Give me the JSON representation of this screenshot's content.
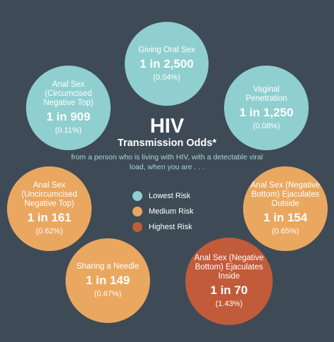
{
  "title": "HIV",
  "subtitle": "Transmission Odds*",
  "description": "from a person who is living with HIV, with a detectable viral load, when you are . . .",
  "colors": {
    "background": "#3e4b57",
    "low": "#8fcfcf",
    "medium": "#eaa760",
    "high": "#c25b3a"
  },
  "legend": [
    {
      "label": "Lowest Risk",
      "level": "low"
    },
    {
      "label": "Medium Risk",
      "level": "medium"
    },
    {
      "label": "Highest Risk",
      "level": "high"
    }
  ],
  "activities": [
    {
      "label": "Giving Oral Sex",
      "odds": "1 in 2,500",
      "percent": "(0.04%)",
      "level": "low"
    },
    {
      "label": "Vaginal Penetration",
      "odds": "1 in 1,250",
      "percent": "(0.08%)",
      "level": "low"
    },
    {
      "label": "Anal Sex (Negative Bottom) Ejaculates Outside",
      "odds": "1 in 154",
      "percent": "(0.65%)",
      "level": "medium"
    },
    {
      "label": "Anal Sex (Negative Bottom) Ejaculates Inside",
      "odds": "1 in 70",
      "percent": "(1.43%)",
      "level": "high"
    },
    {
      "label": "Sharing a Needle",
      "odds": "1 in 149",
      "percent": "(0.67%)",
      "level": "medium"
    },
    {
      "label": "Anal Sex (Uncircumcised Negative Top)",
      "odds": "1 in 161",
      "percent": "(0.62%)",
      "level": "medium"
    },
    {
      "label": "Anal Sex (Circumcised Negative Top)",
      "odds": "1 in 909",
      "percent": "(0.11%)",
      "level": "low"
    }
  ]
}
